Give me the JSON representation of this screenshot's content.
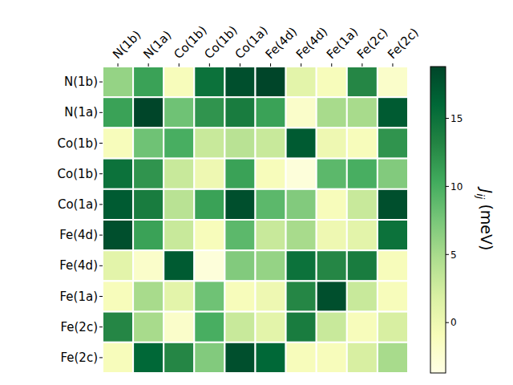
{
  "chart_data": {
    "type": "heatmap",
    "x_labels": [
      "N(1b)",
      "N(1a)",
      "Co(1b)",
      "Co(1b)",
      "Co(1a)",
      "Fe(4d)",
      "Fe(4d)",
      "Fe(1a)",
      "Fe(2c)",
      "Fe(2c)"
    ],
    "y_labels": [
      "N(1b)",
      "N(1a)",
      "Co(1b)",
      "Co(1b)",
      "Co(1a)",
      "Fe(4d)",
      "Fe(4d)",
      "Fe(1a)",
      "Fe(2c)",
      "Fe(2c)"
    ],
    "cells": [
      [
        6,
        11,
        -1,
        15,
        18,
        19,
        1,
        -1,
        13,
        -2
      ],
      [
        11,
        19,
        8,
        12,
        14,
        11,
        -2,
        5,
        5,
        17
      ],
      [
        -1,
        8,
        10,
        3,
        4,
        3,
        17,
        0,
        -1,
        12
      ],
      [
        15,
        12,
        3,
        0,
        11,
        -1,
        -3,
        9,
        10,
        7
      ],
      [
        17,
        14,
        4,
        11,
        18,
        9,
        7,
        -1,
        3,
        18
      ],
      [
        18,
        11,
        3,
        -1,
        9,
        3,
        5,
        0,
        1,
        15
      ],
      [
        1,
        -2,
        17,
        -3,
        7,
        6,
        15,
        13,
        14,
        -1
      ],
      [
        -1,
        5,
        1,
        8,
        -1,
        0,
        13,
        18,
        3,
        -1
      ],
      [
        13,
        5,
        -2,
        10,
        3,
        1,
        14,
        3,
        -1,
        2
      ],
      [
        -1,
        16,
        13,
        7,
        18,
        16,
        -1,
        -1,
        2,
        5
      ]
    ],
    "colorbar": {
      "range": [
        -3.7,
        18.8
      ],
      "ticks": [
        0,
        5,
        10,
        15
      ],
      "label": [
        "J",
        "ij",
        " (meV)"
      ]
    }
  }
}
